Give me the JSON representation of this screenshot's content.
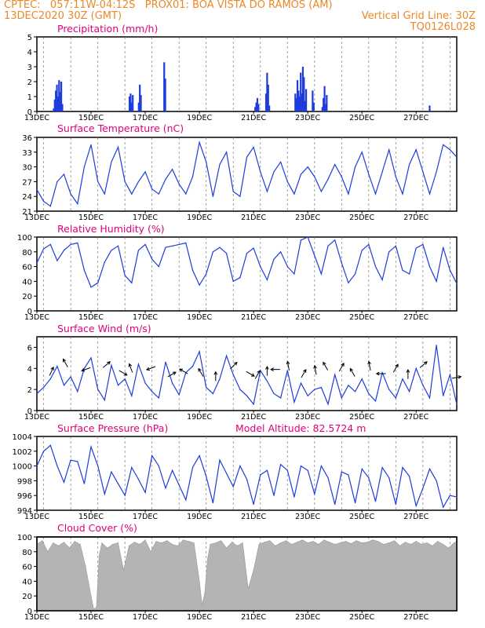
{
  "header": {
    "line1_left": "CPTEC:   057:11W-04:12S   PROX01: BOA VISTA DO RAMOS (AM)",
    "line2_left": "13DEC2020 30Z (GMT)",
    "line2_right": "Vertical Grid Line: 30Z",
    "line3_right": "TQ0126L028"
  },
  "colors": {
    "header": "#e8892a",
    "panel_title": "#e0007a",
    "series": "#1e3cdc",
    "cloud_fill": "#b4b4b4",
    "grid": "#8c8c8c"
  },
  "x_axis": {
    "tick_labels": [
      "13DEC",
      "15DEC",
      "17DEC",
      "19DEC",
      "21DEC",
      "23DEC",
      "25DEC",
      "27DEC"
    ],
    "tick_days": [
      0,
      2,
      4,
      6,
      8,
      10,
      12,
      14
    ],
    "hour_label": "30Z",
    "x_range_days": [
      0,
      15.5
    ]
  },
  "chart_data": [
    {
      "type": "bar",
      "title": "Precipitation (mm/h)",
      "ylim": [
        0,
        5
      ],
      "yticks": [
        "0",
        "1",
        "2",
        "3",
        "4",
        "5"
      ],
      "grid": "vertical dashed",
      "x_days": [
        0.62,
        0.66,
        0.7,
        0.74,
        0.78,
        0.82,
        0.86,
        0.9,
        0.94,
        3.42,
        3.46,
        3.5,
        3.54,
        3.76,
        3.8,
        3.84,
        4.7,
        4.74,
        8.06,
        8.1,
        8.14,
        8.18,
        8.46,
        8.5,
        8.54,
        8.58,
        9.54,
        9.58,
        9.62,
        9.66,
        9.7,
        9.74,
        9.78,
        9.82,
        9.86,
        9.9,
        9.94,
        10.18,
        10.22,
        10.54,
        10.58,
        10.62,
        10.66,
        10.7,
        14.5
      ],
      "values": [
        0.2,
        0.8,
        1.4,
        1.8,
        1.0,
        2.1,
        1.3,
        2.0,
        0.5,
        1.0,
        1.2,
        0.6,
        1.1,
        0.6,
        1.8,
        1.1,
        3.3,
        2.2,
        0.3,
        0.6,
        0.9,
        0.5,
        1.2,
        2.6,
        1.8,
        0.4,
        1.2,
        0.9,
        2.1,
        1.4,
        1.0,
        2.6,
        1.2,
        3.0,
        2.3,
        0.7,
        1.5,
        1.4,
        0.6,
        0.3,
        0.9,
        1.7,
        0.5,
        1.1,
        0.4
      ]
    },
    {
      "type": "line",
      "title": "Surface Temperature (nC)",
      "ylim": [
        21,
        36
      ],
      "yticks": [
        "21",
        "24",
        "27",
        "30",
        "33",
        "36"
      ],
      "grid": "vertical dashed",
      "x_days": [
        0,
        0.25,
        0.5,
        0.75,
        1,
        1.25,
        1.5,
        1.75,
        2,
        2.25,
        2.5,
        2.75,
        3,
        3.25,
        3.5,
        3.75,
        4,
        4.25,
        4.5,
        4.75,
        5,
        5.25,
        5.5,
        5.75,
        6,
        6.25,
        6.5,
        6.75,
        7,
        7.25,
        7.5,
        7.75,
        8,
        8.25,
        8.5,
        8.75,
        9,
        9.25,
        9.5,
        9.75,
        10,
        10.25,
        10.5,
        10.75,
        11,
        11.25,
        11.5,
        11.75,
        12,
        12.25,
        12.5,
        12.75,
        13,
        13.25,
        13.5,
        13.75,
        14,
        14.25,
        14.5,
        14.75,
        15,
        15.25,
        15.5
      ],
      "values": [
        25.4,
        23,
        22,
        27,
        28.5,
        24.5,
        22.5,
        30,
        34.5,
        27,
        24.5,
        31,
        34,
        27,
        24.5,
        27,
        29,
        25.5,
        24.5,
        27.5,
        29.5,
        26.5,
        24.5,
        28,
        35,
        31,
        24,
        30.5,
        33,
        25,
        24,
        32,
        34,
        29,
        25,
        29,
        31,
        27,
        24.5,
        28.5,
        30,
        28,
        25,
        27.5,
        30.5,
        28,
        24.5,
        30,
        33,
        28.5,
        24.5,
        29,
        33.5,
        28,
        24.5,
        30.5,
        33.5,
        29,
        24.5,
        29,
        34.5,
        33.5,
        32
      ]
    },
    {
      "type": "line",
      "title": "Relative Humidity (%)",
      "ylim": [
        0,
        100
      ],
      "yticks": [
        "0",
        "20",
        "40",
        "60",
        "80",
        "100"
      ],
      "grid": "vertical dashed",
      "x_days": [
        0,
        0.25,
        0.5,
        0.75,
        1,
        1.25,
        1.5,
        1.75,
        2,
        2.25,
        2.5,
        2.75,
        3,
        3.25,
        3.5,
        3.75,
        4,
        4.25,
        4.5,
        4.75,
        5,
        5.25,
        5.5,
        5.75,
        6,
        6.25,
        6.5,
        6.75,
        7,
        7.25,
        7.5,
        7.75,
        8,
        8.25,
        8.5,
        8.75,
        9,
        9.25,
        9.5,
        9.75,
        10,
        10.25,
        10.5,
        10.75,
        11,
        11.25,
        11.5,
        11.75,
        12,
        12.25,
        12.5,
        12.75,
        13,
        13.25,
        13.5,
        13.75,
        14,
        14.25,
        14.5,
        14.75,
        15,
        15.25,
        15.5
      ],
      "values": [
        65,
        84,
        90,
        68,
        82,
        90,
        92,
        55,
        32,
        38,
        66,
        82,
        88,
        48,
        38,
        82,
        90,
        70,
        60,
        86,
        88,
        90,
        92,
        55,
        35,
        50,
        80,
        86,
        78,
        40,
        45,
        78,
        85,
        60,
        42,
        70,
        80,
        60,
        50,
        96,
        100,
        75,
        50,
        88,
        96,
        65,
        38,
        50,
        82,
        90,
        60,
        42,
        80,
        88,
        55,
        50,
        85,
        90,
        60,
        40,
        86,
        55,
        37
      ]
    },
    {
      "type": "line",
      "title": "Surface Wind (m/s)",
      "ylim": [
        0,
        7
      ],
      "yticks": [
        "0",
        "2",
        "4",
        "6"
      ],
      "grid": "vertical dashed",
      "x_days": [
        0,
        0.25,
        0.5,
        0.75,
        1,
        1.25,
        1.5,
        1.75,
        2,
        2.25,
        2.5,
        2.75,
        3,
        3.25,
        3.5,
        3.75,
        4,
        4.25,
        4.5,
        4.75,
        5,
        5.25,
        5.5,
        5.75,
        6,
        6.25,
        6.5,
        6.75,
        7,
        7.25,
        7.5,
        7.75,
        8,
        8.25,
        8.5,
        8.75,
        9,
        9.25,
        9.5,
        9.75,
        10,
        10.25,
        10.5,
        10.75,
        11,
        11.25,
        11.5,
        11.75,
        12,
        12.25,
        12.5,
        12.75,
        13,
        13.25,
        13.5,
        13.75,
        14,
        14.25,
        14.5,
        14.75,
        15,
        15.25,
        15.5
      ],
      "values": [
        1.6,
        2.2,
        3.0,
        4.2,
        2.4,
        3.2,
        1.8,
        4.0,
        5.0,
        2.0,
        1.0,
        4.3,
        2.4,
        3.0,
        1.4,
        4.4,
        2.6,
        1.8,
        1.2,
        4.6,
        2.6,
        1.5,
        3.6,
        4.2,
        5.6,
        2.2,
        1.6,
        3.0,
        5.2,
        3.4,
        2.0,
        1.4,
        0.6,
        3.8,
        2.8,
        1.6,
        1.2,
        3.8,
        0.8,
        2.6,
        1.4,
        2.0,
        2.2,
        0.6,
        3.4,
        1.2,
        2.4,
        1.8,
        3.0,
        1.6,
        0.9,
        3.6,
        2.0,
        1.2,
        3.0,
        1.8,
        4.0,
        2.4,
        1.2,
        6.2,
        1.4,
        3.4,
        0.6
      ],
      "arrows": {
        "x_days": [
          0.5,
          1.1,
          1.9,
          2.5,
          3.1,
          3.5,
          4.3,
          4.9,
          5.5,
          6.1,
          6.6,
          7.2,
          7.8,
          8.1,
          8.5,
          8.9,
          9.3,
          9.8,
          10.3,
          10.7,
          11.2,
          11.7,
          12.3,
          12.8,
          13.2,
          13.7,
          14.2,
          15.4
        ],
        "speed": [
          3.5,
          4.3,
          4.0,
          4.2,
          3.7,
          3.8,
          4.1,
          3.3,
          3.6,
          3.4,
          3.0,
          4.1,
          3.6,
          3.2,
          3.5,
          3.9,
          4.0,
          3.3,
          3.6,
          4.0,
          3.9,
          3.4,
          4.0,
          3.5,
          3.8,
          3.2,
          4.2,
          3.1
        ],
        "dir_deg": [
          65,
          120,
          200,
          40,
          330,
          110,
          200,
          30,
          150,
          120,
          90,
          45,
          330,
          60,
          90,
          180,
          100,
          60,
          100,
          120,
          60,
          120,
          100,
          180,
          60,
          90,
          40,
          10
        ]
      }
    },
    {
      "type": "line",
      "title": "Surface Pressure (hPa)",
      "annotation": "Model Altitude: 82.5724 m",
      "ylim": [
        994,
        1004
      ],
      "yticks": [
        "994",
        "996",
        "998",
        "1000",
        "1002",
        "1004"
      ],
      "grid": "vertical dashed",
      "x_days": [
        0,
        0.25,
        0.5,
        0.75,
        1,
        1.25,
        1.5,
        1.75,
        2,
        2.25,
        2.5,
        2.75,
        3,
        3.25,
        3.5,
        3.75,
        4,
        4.25,
        4.5,
        4.75,
        5,
        5.25,
        5.5,
        5.75,
        6,
        6.25,
        6.5,
        6.75,
        7,
        7.25,
        7.5,
        7.75,
        8,
        8.25,
        8.5,
        8.75,
        9,
        9.25,
        9.5,
        9.75,
        10,
        10.25,
        10.5,
        10.75,
        11,
        11.25,
        11.5,
        11.75,
        12,
        12.25,
        12.5,
        12.75,
        13,
        13.25,
        13.5,
        13.75,
        14,
        14.25,
        14.5,
        14.75,
        15,
        15.25,
        15.5
      ],
      "values": [
        1000,
        1002,
        1002.8,
        1000,
        997.8,
        1000.8,
        1000.6,
        997.6,
        1002.6,
        1000,
        996.2,
        999.2,
        997.6,
        996,
        999.8,
        998.2,
        996.4,
        1001.4,
        1000,
        997,
        999.4,
        997.4,
        995.4,
        999.8,
        1001.4,
        998.6,
        995,
        1000.8,
        999,
        997.2,
        1000,
        998.2,
        994.8,
        998.8,
        999.4,
        996,
        1000.2,
        999.4,
        995.8,
        1000,
        999.4,
        996.2,
        1000,
        998.4,
        994.8,
        999.2,
        998.8,
        995,
        999.6,
        998.4,
        995.2,
        999.8,
        998.4,
        994.8,
        999.8,
        998.6,
        994.6,
        997,
        999.6,
        998,
        994.4,
        996,
        995.8
      ]
    },
    {
      "type": "area",
      "title": "Cloud Cover (%)",
      "ylim": [
        0,
        100
      ],
      "yticks": [
        "0",
        "20",
        "40",
        "60",
        "80",
        "100"
      ],
      "grid": "vertical dashed",
      "x_days": [
        0,
        0.2,
        0.4,
        0.6,
        0.8,
        1,
        1.2,
        1.4,
        1.6,
        1.8,
        2,
        2.1,
        2.2,
        2.3,
        2.4,
        2.6,
        2.8,
        3,
        3.2,
        3.4,
        3.6,
        3.8,
        4,
        4.2,
        4.4,
        4.6,
        4.8,
        5,
        5.2,
        5.4,
        5.6,
        5.8,
        6,
        6.1,
        6.2,
        6.3,
        6.4,
        6.6,
        6.8,
        7,
        7.2,
        7.4,
        7.6,
        7.8,
        8,
        8.2,
        8.4,
        8.6,
        8.8,
        9,
        9.2,
        9.4,
        9.6,
        9.8,
        10,
        10.2,
        10.4,
        10.6,
        10.8,
        11,
        11.2,
        11.4,
        11.6,
        11.8,
        12,
        12.2,
        12.4,
        12.6,
        12.8,
        13,
        13.2,
        13.4,
        13.6,
        13.8,
        14,
        14.2,
        14.4,
        14.6,
        14.8,
        15,
        15.2,
        15.4,
        15.5
      ],
      "values": [
        90,
        95,
        80,
        92,
        88,
        93,
        85,
        94,
        90,
        60,
        20,
        2,
        5,
        75,
        92,
        85,
        90,
        92,
        55,
        88,
        93,
        90,
        96,
        80,
        94,
        92,
        95,
        90,
        88,
        96,
        94,
        92,
        40,
        8,
        25,
        70,
        90,
        92,
        95,
        85,
        93,
        88,
        92,
        30,
        55,
        90,
        93,
        95,
        88,
        92,
        95,
        90,
        93,
        96,
        92,
        94,
        90,
        96,
        93,
        90,
        92,
        94,
        91,
        95,
        92,
        93,
        96,
        94,
        90,
        92,
        95,
        88,
        93,
        90,
        94,
        90,
        92,
        88,
        94,
        90,
        85,
        92,
        94
      ]
    }
  ]
}
